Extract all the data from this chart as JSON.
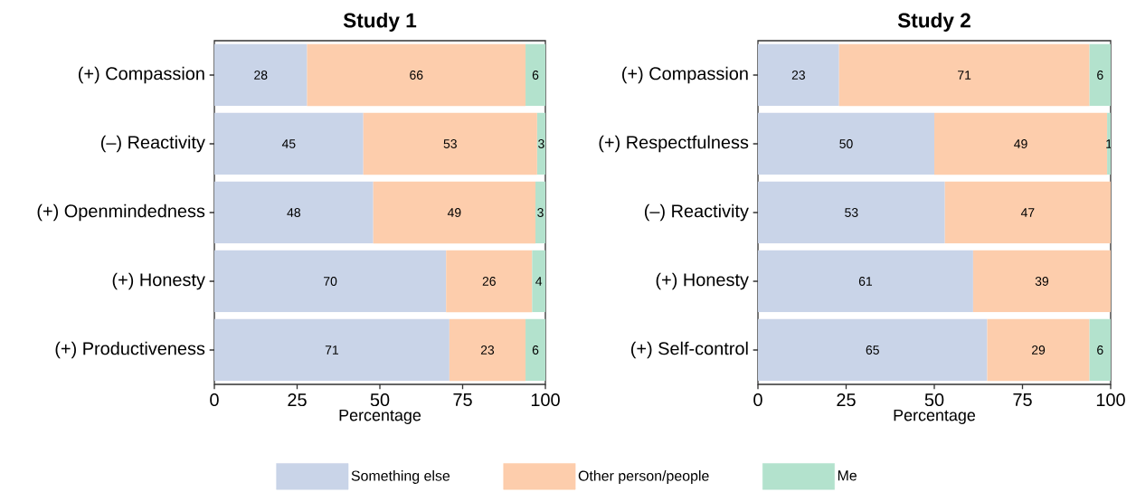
{
  "chart_data": [
    {
      "type": "bar",
      "orientation": "horizontal",
      "stacked": true,
      "title": "Study 1",
      "xlabel": "Percentage",
      "categories": [
        "(+) Compassion",
        "(–) Reactivity",
        "(+) Openmindedness",
        "(+) Honesty",
        "(+) Productiveness"
      ],
      "series": [
        {
          "name": "Something else",
          "color": "#c9d4e8",
          "values": [
            28,
            45,
            48,
            70,
            71
          ],
          "value_labels": [
            "28",
            "45",
            "48",
            "70",
            "71"
          ]
        },
        {
          "name": "Other person/people",
          "color": "#fdcdac",
          "values": [
            66,
            52.5,
            49,
            26,
            23
          ],
          "value_labels": [
            "66",
            "53",
            "49",
            "26",
            "23"
          ]
        },
        {
          "name": "Me",
          "color": "#b3e2cd",
          "values": [
            6,
            2.5,
            3,
            4,
            6
          ],
          "value_labels": [
            "6",
            "3",
            "3",
            "4",
            "6"
          ]
        }
      ],
      "xlim": [
        0,
        100
      ],
      "xticks": [
        0,
        25,
        50,
        75,
        100
      ],
      "legend": "bottom"
    },
    {
      "type": "bar",
      "orientation": "horizontal",
      "stacked": true,
      "title": "Study 2",
      "xlabel": "Percentage",
      "categories": [
        "(+) Compassion",
        "(+) Respectfulness",
        "(–) Reactivity",
        "(+) Honesty",
        "(+) Self-control"
      ],
      "series": [
        {
          "color": "#c9d4e8",
          "values": [
            23,
            50,
            53,
            61,
            65
          ],
          "value_labels": [
            "23",
            "50",
            "53",
            "61",
            "65"
          ]
        },
        {
          "color": "#fdcdac",
          "values": [
            71,
            49,
            47,
            39,
            29
          ],
          "value_labels": [
            "71",
            "49",
            "47",
            "39",
            "29"
          ]
        },
        {
          "color": "#b3e2cd",
          "values": [
            6,
            1,
            null,
            null,
            6
          ],
          "value_labels": [
            "6",
            "1",
            null,
            null,
            "6"
          ]
        }
      ],
      "xlim": [
        0,
        100
      ],
      "xticks": [
        0,
        25,
        50,
        75,
        100
      ]
    }
  ]
}
